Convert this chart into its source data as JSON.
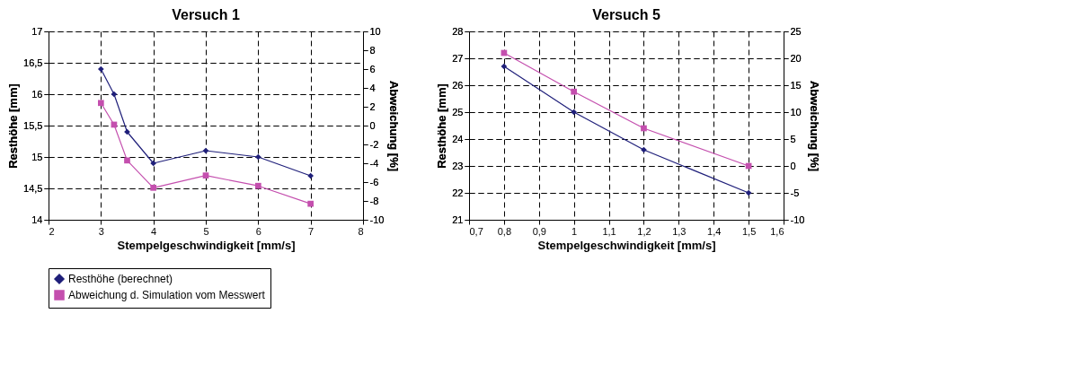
{
  "chart_data": [
    {
      "type": "line",
      "title": "Versuch 1",
      "xlabel": "Stempelgeschwindigkeit [mm/s]",
      "ylabel": "Resthöhe [mm]",
      "y2label": "Abweichung [%]",
      "x": [
        3,
        3.25,
        3.5,
        4,
        5,
        6,
        7
      ],
      "series": [
        {
          "name": "Resthöhe (berechnet)",
          "color": "#1f1f7a",
          "marker": "diamond",
          "values": [
            16.4,
            16.0,
            15.4,
            14.9,
            15.1,
            15.0,
            14.7
          ]
        },
        {
          "name": "Abweichung d. Simulation vom Messwert",
          "color": "#c44fae",
          "marker": "square",
          "axis": "y2",
          "values": [
            2.4,
            0.1,
            -3.7,
            -6.6,
            -5.3,
            -6.4,
            -8.3
          ]
        }
      ],
      "xlim": [
        2,
        8
      ],
      "xticks": [
        2,
        3,
        4,
        5,
        6,
        7,
        8
      ],
      "ylim": [
        14,
        17
      ],
      "yticks": [
        14,
        {
          "value": 14.5,
          "label": "14,5"
        },
        15,
        {
          "value": 15.5,
          "label": "15,5"
        },
        16,
        {
          "value": 16.5,
          "label": "16,5"
        },
        17
      ],
      "y2lim": [
        -10,
        10
      ],
      "y2ticks": [
        -10,
        -8,
        -6,
        -4,
        -2,
        0,
        2,
        4,
        6,
        8,
        10
      ],
      "grid": true,
      "legend": "bottom"
    },
    {
      "type": "line",
      "title": "Versuch 5",
      "xlabel": "Stempelgeschwindigkeit [mm/s]",
      "ylabel": "Resthöhe [mm]",
      "y2label": "Abweichung [%]",
      "x": [
        0.8,
        1.0,
        1.2,
        1.5
      ],
      "series": [
        {
          "name": "Resthöhe (berechnet)",
          "color": "#1f1f7a",
          "marker": "diamond",
          "values": [
            26.7,
            25.0,
            23.6,
            22.0
          ]
        },
        {
          "name": "Abweichung d. Simulation vom Messwert",
          "color": "#c44fae",
          "marker": "square",
          "axis": "y2",
          "values": [
            21,
            13.8,
            7,
            0
          ]
        }
      ],
      "xlim": [
        0.7,
        1.6
      ],
      "xticks": [
        {
          "value": 0.7,
          "label": "0,7"
        },
        {
          "value": 0.8,
          "label": "0,8"
        },
        {
          "value": 0.9,
          "label": "0,9"
        },
        1,
        {
          "value": 1.1,
          "label": "1,1"
        },
        {
          "value": 1.2,
          "label": "1,2"
        },
        {
          "value": 1.3,
          "label": "1,3"
        },
        {
          "value": 1.4,
          "label": "1,4"
        },
        {
          "value": 1.5,
          "label": "1,5"
        },
        {
          "value": 1.6,
          "label": "1,6"
        }
      ],
      "ylim": [
        21,
        28
      ],
      "yticks": [
        21,
        22,
        23,
        24,
        25,
        26,
        27,
        28
      ],
      "y2lim": [
        -10,
        25
      ],
      "y2ticks": [
        -10,
        -5,
        0,
        5,
        10,
        15,
        20,
        25
      ],
      "grid": true,
      "legend": "bottom"
    }
  ]
}
